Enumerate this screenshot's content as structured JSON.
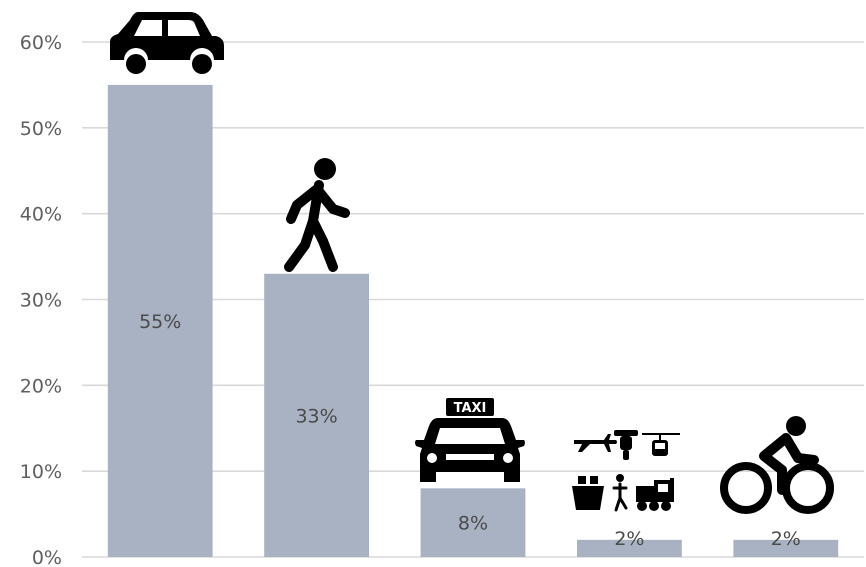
{
  "chart_data": {
    "type": "bar",
    "categories": [
      "Car",
      "Walk",
      "Taxi",
      "Other",
      "Bicycle"
    ],
    "values": [
      55,
      33,
      8,
      2,
      2
    ],
    "data_labels": [
      "55%",
      "33%",
      "8%",
      "2%",
      "2%"
    ],
    "category_icons": [
      "car-icon",
      "pedestrian-icon",
      "taxi-icon",
      "other-transport-icons",
      "bicycle-icon"
    ],
    "taxi_sign_text": "TAXI",
    "title": "",
    "xlabel": "",
    "ylabel": "",
    "ylim": [
      0,
      60
    ],
    "y_ticks": [
      0,
      10,
      20,
      30,
      40,
      50,
      60
    ],
    "y_tick_labels": [
      "0%",
      "10%",
      "20%",
      "30%",
      "40%",
      "50%",
      "60%"
    ],
    "grid": true,
    "bar_color": "#a9b2c3",
    "grid_color": "#d9d9d9"
  }
}
